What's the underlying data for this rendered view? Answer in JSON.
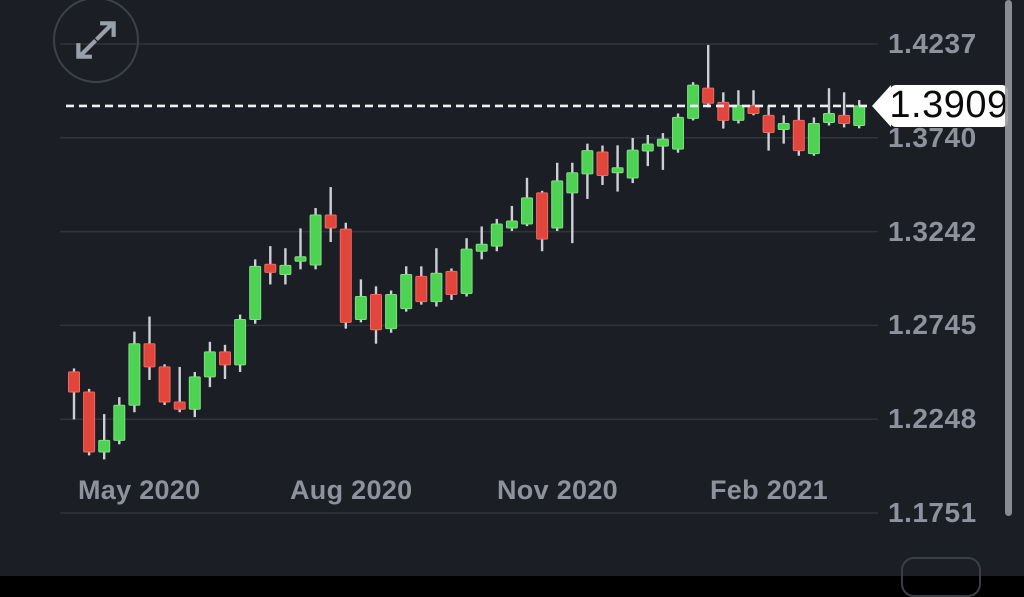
{
  "chart_data": {
    "type": "candlestick",
    "description": "Dark-themed weekly candlestick price chart (trading app)",
    "grid": true,
    "ylim": [
      1.1751,
      1.4237
    ],
    "x_axis": {
      "labels": [
        "May 2020",
        "Aug 2020",
        "Nov 2020",
        "Feb 2021"
      ]
    },
    "y_axis": {
      "labels": [
        "1.4237",
        "1.3740",
        "1.3242",
        "1.2745",
        "1.2248",
        "1.1751"
      ]
    },
    "price_line": {
      "label": "1.3909",
      "value": 1.3909
    },
    "candles": [
      {
        "o": 1.25,
        "h": 1.2518,
        "l": 1.2248,
        "c": 1.2393
      },
      {
        "o": 1.2393,
        "h": 1.241,
        "l": 1.2057,
        "c": 1.2075
      },
      {
        "o": 1.2075,
        "h": 1.2276,
        "l": 1.2036,
        "c": 1.2137
      },
      {
        "o": 1.2137,
        "h": 1.2366,
        "l": 1.2116,
        "c": 1.2323
      },
      {
        "o": 1.2323,
        "h": 1.2713,
        "l": 1.2286,
        "c": 1.2649
      },
      {
        "o": 1.2649,
        "h": 1.2793,
        "l": 1.2457,
        "c": 1.2526
      },
      {
        "o": 1.2526,
        "h": 1.254,
        "l": 1.2324,
        "c": 1.234
      },
      {
        "o": 1.234,
        "h": 1.2526,
        "l": 1.2286,
        "c": 1.2302
      },
      {
        "o": 1.2302,
        "h": 1.2499,
        "l": 1.226,
        "c": 1.2473
      },
      {
        "o": 1.2473,
        "h": 1.2659,
        "l": 1.2419,
        "c": 1.2606
      },
      {
        "o": 1.2606,
        "h": 1.2643,
        "l": 1.2462,
        "c": 1.2537
      },
      {
        "o": 1.2537,
        "h": 1.2803,
        "l": 1.2499,
        "c": 1.2777
      },
      {
        "o": 1.2777,
        "h": 1.3096,
        "l": 1.2755,
        "c": 1.3059
      },
      {
        "o": 1.307,
        "h": 1.3166,
        "l": 1.2963,
        "c": 1.3027
      },
      {
        "o": 1.3016,
        "h": 1.3155,
        "l": 1.2963,
        "c": 1.3064
      },
      {
        "o": 1.3086,
        "h": 1.326,
        "l": 1.3043,
        "c": 1.311
      },
      {
        "o": 1.3066,
        "h": 1.3368,
        "l": 1.3043,
        "c": 1.3331
      },
      {
        "o": 1.3331,
        "h": 1.3479,
        "l": 1.3188,
        "c": 1.3262
      },
      {
        "o": 1.3256,
        "h": 1.329,
        "l": 1.2729,
        "c": 1.2762
      },
      {
        "o": 1.2777,
        "h": 1.299,
        "l": 1.2762,
        "c": 1.2899
      },
      {
        "o": 1.291,
        "h": 1.2953,
        "l": 1.2649,
        "c": 1.2723
      },
      {
        "o": 1.2729,
        "h": 1.2931,
        "l": 1.2707,
        "c": 1.291
      },
      {
        "o": 1.2835,
        "h": 1.3059,
        "l": 1.2819,
        "c": 1.3016
      },
      {
        "o": 1.3006,
        "h": 1.3059,
        "l": 1.2856,
        "c": 1.2872
      },
      {
        "o": 1.2872,
        "h": 1.3155,
        "l": 1.2846,
        "c": 1.3022
      },
      {
        "o": 1.3032,
        "h": 1.3048,
        "l": 1.2881,
        "c": 1.291
      },
      {
        "o": 1.2915,
        "h": 1.3208,
        "l": 1.2899,
        "c": 1.315
      },
      {
        "o": 1.3139,
        "h": 1.327,
        "l": 1.3096,
        "c": 1.3176
      },
      {
        "o": 1.3166,
        "h": 1.331,
        "l": 1.3139,
        "c": 1.3283
      },
      {
        "o": 1.3262,
        "h": 1.3379,
        "l": 1.3246,
        "c": 1.3299
      },
      {
        "o": 1.3283,
        "h": 1.3528,
        "l": 1.3272,
        "c": 1.3422
      },
      {
        "o": 1.3448,
        "h": 1.3459,
        "l": 1.3139,
        "c": 1.3203
      },
      {
        "o": 1.3262,
        "h": 1.3608,
        "l": 1.3246,
        "c": 1.3512
      },
      {
        "o": 1.3448,
        "h": 1.3608,
        "l": 1.3182,
        "c": 1.3555
      },
      {
        "o": 1.3549,
        "h": 1.3709,
        "l": 1.3416,
        "c": 1.3672
      },
      {
        "o": 1.3665,
        "h": 1.3699,
        "l": 1.349,
        "c": 1.354
      },
      {
        "o": 1.3555,
        "h": 1.37,
        "l": 1.3455,
        "c": 1.3581
      },
      {
        "o": 1.3527,
        "h": 1.3739,
        "l": 1.35,
        "c": 1.3675
      },
      {
        "o": 1.367,
        "h": 1.3755,
        "l": 1.359,
        "c": 1.3707
      },
      {
        "o": 1.3696,
        "h": 1.3765,
        "l": 1.357,
        "c": 1.3733
      },
      {
        "o": 1.368,
        "h": 1.3869,
        "l": 1.3661,
        "c": 1.3848
      },
      {
        "o": 1.3843,
        "h": 1.4035,
        "l": 1.3832,
        "c": 1.4019
      },
      {
        "o": 1.4003,
        "h": 1.4232,
        "l": 1.3901,
        "c": 1.3923
      },
      {
        "o": 1.3928,
        "h": 1.3981,
        "l": 1.3789,
        "c": 1.3832
      },
      {
        "o": 1.3832,
        "h": 1.3992,
        "l": 1.3816,
        "c": 1.3912
      },
      {
        "o": 1.3912,
        "h": 1.3992,
        "l": 1.3859,
        "c": 1.3869
      },
      {
        "o": 1.3859,
        "h": 1.3912,
        "l": 1.3672,
        "c": 1.3768
      },
      {
        "o": 1.3784,
        "h": 1.3859,
        "l": 1.3709,
        "c": 1.3816
      },
      {
        "o": 1.3832,
        "h": 1.3912,
        "l": 1.3645,
        "c": 1.3672
      },
      {
        "o": 1.3656,
        "h": 1.3848,
        "l": 1.3645,
        "c": 1.3816
      },
      {
        "o": 1.3821,
        "h": 1.4003,
        "l": 1.3805,
        "c": 1.3869
      },
      {
        "o": 1.3859,
        "h": 1.3981,
        "l": 1.3795,
        "c": 1.3816
      },
      {
        "o": 1.3805,
        "h": 1.394,
        "l": 1.379,
        "c": 1.3909
      }
    ],
    "colors": {
      "background": "#1b1e25",
      "up": "#4dd254",
      "up_edge": "#7ce07f",
      "down": "#e2453c",
      "down_edge": "#ec6a5e",
      "wick": "#ccd0d6",
      "grid": "rgba(255,255,255,0.10)",
      "axis_text": "#8d929c",
      "price_line": "#eef0f3",
      "price_tag_bg": "#ffffff",
      "price_tag_text": "#0a0a0a"
    }
  },
  "controls": {
    "expand_icon": "expand-diagonal-arrows"
  }
}
